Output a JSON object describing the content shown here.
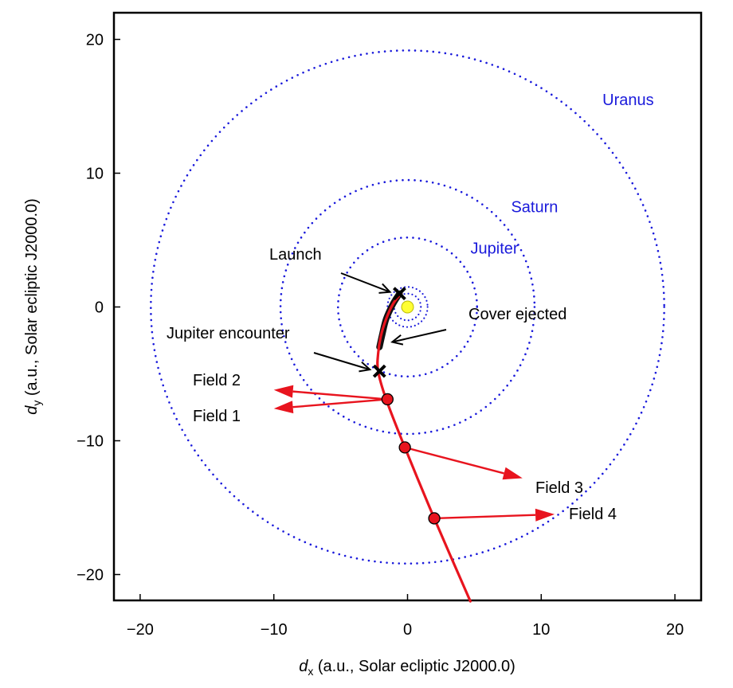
{
  "chart_data": {
    "type": "scatter",
    "xlabel": {
      "italic": "d",
      "sub": "x",
      "rest": " (a.u., Solar ecliptic J2000.0)"
    },
    "ylabel": {
      "italic": "d",
      "sub": "y",
      "rest": " (a.u., Solar ecliptic J2000.0)"
    },
    "xlim": [
      -20,
      20
    ],
    "ylim": [
      -22,
      22
    ],
    "xticks": [
      -20,
      -10,
      0,
      10,
      20
    ],
    "yticks": [
      -20,
      -10,
      0,
      10,
      20
    ],
    "xtick_labels": [
      "−20",
      "−10",
      "0",
      "10",
      "20"
    ],
    "ytick_labels": [
      "−20",
      "−10",
      "0",
      "10",
      "20"
    ],
    "grid": false,
    "colors": {
      "orbit": "#1a1adb",
      "trajectory": "#e8141e",
      "early_trajectory": "#111111",
      "sun": "#ffff33",
      "marker": "#000000"
    },
    "sun": {
      "x": 0,
      "y": 0
    },
    "orbits": [
      {
        "name": "Jupiter",
        "radius": 5.2,
        "label": "Jupiter",
        "label_at": [
          6.5,
          4.4
        ]
      },
      {
        "name": "Saturn",
        "radius": 9.5,
        "label": "Saturn",
        "label_at": [
          9.5,
          7.5
        ]
      },
      {
        "name": "Uranus",
        "radius": 19.2,
        "label": "Uranus",
        "label_at": [
          16.5,
          15.5
        ]
      }
    ],
    "trajectory_early": [
      [
        -0.6,
        1.0
      ],
      [
        -1.1,
        0.2
      ],
      [
        -1.6,
        -0.9
      ],
      [
        -1.9,
        -2.1
      ],
      [
        -2.1,
        -3.0
      ]
    ],
    "trajectory": [
      [
        -0.5,
        1.0
      ],
      [
        -1.1,
        0.2
      ],
      [
        -1.6,
        -0.9
      ],
      [
        -2.0,
        -2.2
      ],
      [
        -2.2,
        -3.5
      ],
      [
        -2.2,
        -4.8
      ],
      [
        -1.6,
        -6.9
      ],
      [
        -0.2,
        -10.5
      ],
      [
        2.0,
        -15.8
      ],
      [
        4.7,
        -22.0
      ]
    ],
    "events": [
      {
        "name": "Launch",
        "x": -0.6,
        "y": 1.0,
        "label": "Launch"
      },
      {
        "name": "Jupiter encounter",
        "x": -2.1,
        "y": -4.8,
        "label": "Jupiter encounter"
      }
    ],
    "cover_ejected": {
      "x": -2.1,
      "y": -2.5,
      "label": "Cover ejected"
    },
    "fields": [
      {
        "name": "Field 1",
        "x": -1.5,
        "y": -6.9,
        "dir_x": -10.0,
        "dir_y": -7.6,
        "label": "Field 1"
      },
      {
        "name": "Field 2",
        "x": -1.5,
        "y": -6.9,
        "dir_x": -10.0,
        "dir_y": -6.2,
        "label": "Field 2"
      },
      {
        "name": "Field 3",
        "x": -0.2,
        "y": -10.5,
        "dir_x": 8.6,
        "dir_y": -12.8,
        "label": "Field 3"
      },
      {
        "name": "Field 4",
        "x": 2.0,
        "y": -15.8,
        "dir_x": 11.0,
        "dir_y": -15.5,
        "label": "Field 4"
      }
    ]
  }
}
